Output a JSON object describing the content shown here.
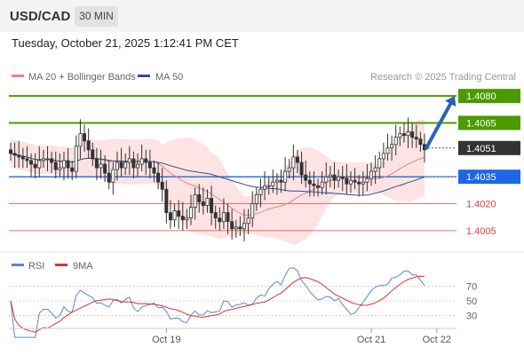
{
  "header": {
    "symbol": "USD/CAD",
    "timeframe": "30 MIN",
    "datetime": "Tuesday, October 21, 2025 1:12:41 PM CET"
  },
  "legend": {
    "ma20_label": "MA 20 + Bollinger Bands",
    "ma50_label": "MA 50",
    "credit": "Research © 2025 Trading Central",
    "rsi_label": "RSI",
    "rsi_ma_label": "9MA"
  },
  "colors": {
    "ma20": "#f08080",
    "ma50": "#2f4f8f",
    "bollinger_fill": "#fde3e3",
    "resistance": "#4a9a00",
    "support": "#1e66e6",
    "target": "#e04040",
    "current": "#333333",
    "arrow": "#2a62b8",
    "rsi": "#5b86d6",
    "rsi_ma": "#e03030"
  },
  "chart_data": [
    {
      "type": "candlestick",
      "symbol": "USD/CAD",
      "interval": "30 MIN",
      "ylim": [
        1.3998,
        1.4086
      ],
      "x_tick_labels": [
        "Oct 19",
        "Oct 21",
        "Oct 22"
      ],
      "x_tick_index": [
        38,
        88,
        104
      ],
      "levels": [
        {
          "value": 1.408,
          "label": "1.4080",
          "kind": "resistance"
        },
        {
          "value": 1.4065,
          "label": "1.4065",
          "kind": "resistance"
        },
        {
          "value": 1.4051,
          "label": "1.4051",
          "kind": "current"
        },
        {
          "value": 1.4035,
          "label": "1.4035",
          "kind": "pivot"
        },
        {
          "value": 1.402,
          "label": "1.4020",
          "kind": "target"
        },
        {
          "value": 1.4005,
          "label": "1.4005",
          "kind": "target"
        }
      ],
      "close": [
        1.4048,
        1.4047,
        1.4046,
        1.4045,
        1.4044,
        1.4042,
        1.404,
        1.4044,
        1.4045,
        1.4045,
        1.4043,
        1.4039,
        1.404,
        1.4044,
        1.404,
        1.4038,
        1.4052,
        1.4059,
        1.4055,
        1.405,
        1.4045,
        1.404,
        1.4042,
        1.4037,
        1.4032,
        1.4039,
        1.4043,
        1.404,
        1.4043,
        1.4045,
        1.404,
        1.4042,
        1.4045,
        1.4043,
        1.404,
        1.4037,
        1.4032,
        1.4028,
        1.4015,
        1.4011,
        1.4016,
        1.4013,
        1.4011,
        1.4012,
        1.4018,
        1.4025,
        1.4021,
        1.4019,
        1.4023,
        1.4015,
        1.4012,
        1.401,
        1.4015,
        1.401,
        1.4006,
        1.4007,
        1.4006,
        1.4009,
        1.4012,
        1.402,
        1.4025,
        1.4028,
        1.403,
        1.403,
        1.4032,
        1.4033,
        1.4032,
        1.4038,
        1.404,
        1.4046,
        1.4043,
        1.4036,
        1.4033,
        1.4031,
        1.403,
        1.4029,
        1.4032,
        1.4035,
        1.4036,
        1.4033,
        1.4035,
        1.4034,
        1.4031,
        1.4033,
        1.4032,
        1.4031,
        1.4032,
        1.4034,
        1.4038,
        1.404,
        1.4045,
        1.4048,
        1.4051,
        1.4053,
        1.4057,
        1.4059,
        1.4058,
        1.406,
        1.4057,
        1.4056,
        1.4053,
        1.405
      ],
      "series": [
        {
          "name": "MA 20 + Bollinger Bands",
          "role": "ma20"
        },
        {
          "name": "MA 50",
          "role": "ma50"
        }
      ],
      "projection": {
        "from_value": 1.4051,
        "to_value": 1.408
      }
    },
    {
      "type": "line",
      "series_names": [
        "RSI",
        "9MA"
      ],
      "ylim": [
        22,
        78
      ],
      "y_ticks": [
        70,
        50,
        30
      ]
    }
  ]
}
